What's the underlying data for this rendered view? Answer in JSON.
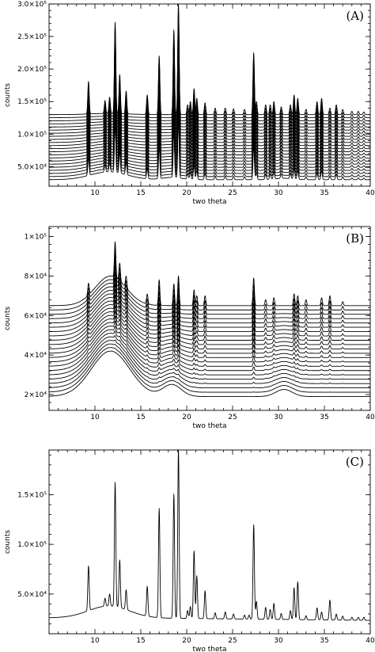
{
  "chart_data": [
    {
      "type": "line",
      "panel_label": "(A)",
      "xlabel": "two theta",
      "ylabel": "counts",
      "xlim": [
        5,
        40
      ],
      "ylim": [
        20000,
        300000
      ],
      "x_ticks": [
        10,
        15,
        20,
        25,
        30,
        35,
        40
      ],
      "y_ticks": [
        {
          "value": 50000,
          "label": "5.0×10⁴"
        },
        {
          "value": 100000,
          "label": "1.0×10⁵"
        },
        {
          "value": 150000,
          "label": "1.5×10⁵"
        },
        {
          "value": 200000,
          "label": "2.0×10⁵"
        },
        {
          "value": 250000,
          "label": "2.5×10⁵"
        },
        {
          "value": 300000,
          "label": "3.0×10⁵"
        }
      ],
      "stack": {
        "count": 22,
        "first_base": 30000,
        "last_base": 130000,
        "hump_center": 11.5,
        "hump_height": 12000,
        "hump_width": 2.0,
        "trend": "decreasing_hump"
      },
      "peaks": [
        {
          "x": 9.3,
          "h": 50000
        },
        {
          "x": 11.1,
          "h": 20000
        },
        {
          "x": 11.6,
          "h": 25000
        },
        {
          "x": 12.2,
          "h": 140000
        },
        {
          "x": 12.7,
          "h": 60000
        },
        {
          "x": 13.4,
          "h": 35000
        },
        {
          "x": 15.7,
          "h": 30000
        },
        {
          "x": 17.0,
          "h": 90000
        },
        {
          "x": 18.6,
          "h": 130000
        },
        {
          "x": 19.1,
          "h": 170000
        },
        {
          "x": 20.1,
          "h": 15000
        },
        {
          "x": 20.4,
          "h": 20000
        },
        {
          "x": 20.8,
          "h": 40000
        },
        {
          "x": 21.1,
          "h": 25000
        },
        {
          "x": 22.0,
          "h": 18000
        },
        {
          "x": 23.1,
          "h": 10000
        },
        {
          "x": 24.2,
          "h": 10000
        },
        {
          "x": 25.1,
          "h": 9000
        },
        {
          "x": 26.3,
          "h": 8000
        },
        {
          "x": 27.3,
          "h": 95000
        },
        {
          "x": 27.6,
          "h": 20000
        },
        {
          "x": 28.6,
          "h": 15000
        },
        {
          "x": 29.1,
          "h": 15000
        },
        {
          "x": 29.5,
          "h": 20000
        },
        {
          "x": 30.3,
          "h": 12000
        },
        {
          "x": 31.3,
          "h": 15000
        },
        {
          "x": 31.7,
          "h": 30000
        },
        {
          "x": 32.1,
          "h": 25000
        },
        {
          "x": 33.0,
          "h": 8000
        },
        {
          "x": 34.2,
          "h": 20000
        },
        {
          "x": 34.7,
          "h": 25000
        },
        {
          "x": 35.6,
          "h": 10000
        },
        {
          "x": 36.3,
          "h": 15000
        },
        {
          "x": 37.0,
          "h": 8000
        },
        {
          "x": 38.0,
          "h": 5000
        },
        {
          "x": 38.7,
          "h": 5000
        },
        {
          "x": 39.3,
          "h": 4000
        }
      ]
    },
    {
      "type": "line",
      "panel_label": "(B)",
      "xlabel": "two theta",
      "ylabel": "counts",
      "xlim": [
        5,
        40
      ],
      "ylim": [
        12000,
        105000
      ],
      "x_ticks": [
        10,
        15,
        20,
        25,
        30,
        35,
        40
      ],
      "y_ticks": [
        {
          "value": 20000,
          "label": "2×10⁴"
        },
        {
          "value": 40000,
          "label": "4×10⁴"
        },
        {
          "value": 60000,
          "label": "6×10⁴"
        },
        {
          "value": 80000,
          "label": "8×10⁴"
        },
        {
          "value": 100000,
          "label": "1×10⁵"
        }
      ],
      "stack": {
        "count": 22,
        "first_base": 19000,
        "last_base": 65000,
        "hump_center": 11.7,
        "hump_height": 23000,
        "hump_width": 2.1,
        "trend": "amorphous_to_crystalline"
      },
      "peaks": [
        {
          "x": 9.3,
          "h": 6000
        },
        {
          "x": 12.2,
          "h": 18000
        },
        {
          "x": 12.7,
          "h": 9000
        },
        {
          "x": 13.4,
          "h": 6000
        },
        {
          "x": 15.7,
          "h": 5000
        },
        {
          "x": 17.0,
          "h": 13000
        },
        {
          "x": 18.6,
          "h": 11000
        },
        {
          "x": 19.1,
          "h": 15000
        },
        {
          "x": 20.8,
          "h": 8000
        },
        {
          "x": 21.1,
          "h": 5000
        },
        {
          "x": 22.0,
          "h": 5000
        },
        {
          "x": 27.3,
          "h": 14000
        },
        {
          "x": 28.6,
          "h": 3000
        },
        {
          "x": 29.5,
          "h": 4000
        },
        {
          "x": 31.7,
          "h": 6000
        },
        {
          "x": 32.1,
          "h": 5000
        },
        {
          "x": 33.0,
          "h": 3000
        },
        {
          "x": 34.7,
          "h": 4000
        },
        {
          "x": 35.6,
          "h": 5000
        },
        {
          "x": 37.0,
          "h": 2000
        }
      ]
    },
    {
      "type": "line",
      "panel_label": "(C)",
      "xlabel": "two theta",
      "ylabel": "counts",
      "xlim": [
        5,
        40
      ],
      "ylim": [
        10000,
        195000
      ],
      "x_ticks": [
        10,
        15,
        20,
        25,
        30,
        35,
        40
      ],
      "y_ticks": [
        {
          "value": 50000,
          "label": "5.0×10⁴"
        },
        {
          "value": 100000,
          "label": "1.0×10⁵"
        },
        {
          "value": 150000,
          "label": "1.5×10⁵"
        }
      ],
      "stack": {
        "count": 1,
        "first_base": 26000,
        "last_base": 26000,
        "hump_center": 11.5,
        "hump_height": 12000,
        "hump_width": 2.2,
        "trend": "single"
      },
      "peaks": [
        {
          "x": 9.3,
          "h": 45000
        },
        {
          "x": 11.1,
          "h": 8000
        },
        {
          "x": 11.6,
          "h": 12000
        },
        {
          "x": 12.2,
          "h": 125000
        },
        {
          "x": 12.7,
          "h": 48000
        },
        {
          "x": 13.4,
          "h": 20000
        },
        {
          "x": 15.7,
          "h": 30000
        },
        {
          "x": 17.0,
          "h": 110000
        },
        {
          "x": 18.6,
          "h": 125000
        },
        {
          "x": 19.1,
          "h": 170000
        },
        {
          "x": 20.1,
          "h": 8000
        },
        {
          "x": 20.4,
          "h": 12000
        },
        {
          "x": 20.8,
          "h": 68000
        },
        {
          "x": 21.1,
          "h": 43000
        },
        {
          "x": 22.0,
          "h": 28000
        },
        {
          "x": 23.1,
          "h": 6000
        },
        {
          "x": 24.2,
          "h": 7000
        },
        {
          "x": 25.1,
          "h": 5000
        },
        {
          "x": 26.3,
          "h": 4000
        },
        {
          "x": 26.8,
          "h": 4000
        },
        {
          "x": 27.3,
          "h": 95000
        },
        {
          "x": 27.6,
          "h": 18000
        },
        {
          "x": 28.6,
          "h": 12000
        },
        {
          "x": 29.1,
          "h": 10000
        },
        {
          "x": 29.5,
          "h": 16000
        },
        {
          "x": 30.3,
          "h": 6000
        },
        {
          "x": 31.3,
          "h": 9000
        },
        {
          "x": 31.7,
          "h": 32000
        },
        {
          "x": 32.1,
          "h": 38000
        },
        {
          "x": 33.0,
          "h": 4000
        },
        {
          "x": 34.2,
          "h": 12000
        },
        {
          "x": 34.7,
          "h": 8000
        },
        {
          "x": 35.6,
          "h": 20000
        },
        {
          "x": 36.3,
          "h": 6000
        },
        {
          "x": 37.0,
          "h": 4000
        },
        {
          "x": 38.0,
          "h": 3000
        },
        {
          "x": 38.7,
          "h": 3000
        },
        {
          "x": 39.3,
          "h": 3000
        }
      ]
    }
  ]
}
